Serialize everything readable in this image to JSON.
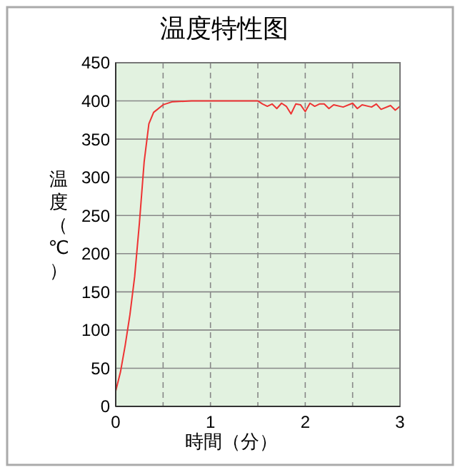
{
  "chart_data": {
    "type": "line",
    "title": "温度特性图",
    "xlabel": "時間（分）",
    "ylabel": "温度（℃）",
    "x": [
      0,
      0.05,
      0.1,
      0.15,
      0.2,
      0.25,
      0.3,
      0.35,
      0.4,
      0.5,
      0.6,
      0.8,
      1.0,
      1.5,
      1.55,
      1.6,
      1.65,
      1.7,
      1.75,
      1.8,
      1.85,
      1.9,
      1.95,
      2.0,
      2.05,
      2.1,
      2.15,
      2.2,
      2.25,
      2.3,
      2.4,
      2.5,
      2.55,
      2.6,
      2.7,
      2.75,
      2.8,
      2.9,
      2.95,
      3.0
    ],
    "series": [
      {
        "color": "#ee3333",
        "values": [
          20,
          45,
          80,
          120,
          170,
          240,
          320,
          370,
          385,
          395,
          399,
          400,
          400,
          400,
          396,
          393,
          396,
          390,
          397,
          393,
          383,
          396,
          395,
          386,
          397,
          393,
          396,
          396,
          390,
          395,
          392,
          397,
          390,
          395,
          392,
          396,
          389,
          394,
          388,
          393
        ]
      }
    ],
    "xlim": [
      0,
      3
    ],
    "xticks": [
      0,
      {
        "value": 0.5,
        "label": null
      },
      1,
      {
        "value": 1.5,
        "label": null
      },
      2,
      {
        "value": 2.5,
        "label": null
      },
      3
    ],
    "ylim": [
      0,
      450
    ],
    "yticks": [
      0,
      50,
      100,
      150,
      200,
      250,
      300,
      350,
      400,
      450
    ],
    "grid": true,
    "marker": "none",
    "line_style": "solid"
  }
}
